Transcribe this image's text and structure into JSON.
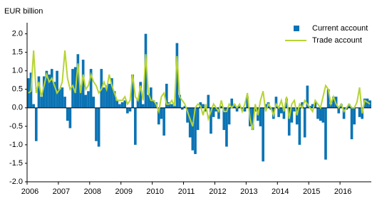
{
  "chart_data": {
    "type": "bar-line",
    "y_label": "EUR billion",
    "categories": [
      "2006",
      null,
      null,
      null,
      null,
      null,
      null,
      null,
      null,
      null,
      null,
      null,
      "2007",
      null,
      null,
      null,
      null,
      null,
      null,
      null,
      null,
      null,
      null,
      null,
      "2008",
      null,
      null,
      null,
      null,
      null,
      null,
      null,
      null,
      null,
      null,
      null,
      "2009",
      null,
      null,
      null,
      null,
      null,
      null,
      null,
      null,
      null,
      null,
      null,
      "2010",
      null,
      null,
      null,
      null,
      null,
      null,
      null,
      null,
      null,
      null,
      null,
      "2011",
      null,
      null,
      null,
      null,
      null,
      null,
      null,
      null,
      null,
      null,
      null,
      "2012",
      null,
      null,
      null,
      null,
      null,
      null,
      null,
      null,
      null,
      null,
      null,
      "2013",
      null,
      null,
      null,
      null,
      null,
      null,
      null,
      null,
      null,
      null,
      null,
      "2014",
      null,
      null,
      null,
      null,
      null,
      null,
      null,
      null,
      null,
      null,
      null,
      "2015",
      null,
      null,
      null,
      null,
      null,
      null,
      null,
      null,
      null,
      null,
      null,
      "2016",
      null,
      null,
      null,
      null,
      null,
      null,
      null,
      null,
      null,
      null,
      null
    ],
    "series": [
      {
        "name": "Current account",
        "type": "bar",
        "color": "#0b73b4",
        "values": [
          0.8,
          0.95,
          0.1,
          -0.9,
          0.85,
          0.3,
          0.85,
          1.0,
          0.9,
          1.05,
          0.7,
          1.0,
          0.5,
          0.55,
          0.3,
          -0.35,
          -0.55,
          1.05,
          1.1,
          1.45,
          0.6,
          1.3,
          0.35,
          0.45,
          1.05,
          0.3,
          -0.9,
          -1.05,
          1.05,
          0.55,
          0.6,
          0.65,
          0.8,
          0.45,
          0.2,
          0.1,
          0.15,
          0.2,
          -0.15,
          -0.1,
          0.9,
          -1.0,
          0.25,
          0.7,
          0.1,
          2.0,
          0.35,
          0.55,
          0.2,
          0.15,
          -0.45,
          -0.3,
          -0.75,
          0.65,
          0.15,
          0.1,
          0.05,
          1.75,
          0.35,
          -0.05,
          0.05,
          -0.4,
          -0.8,
          -1.15,
          -1.25,
          -0.6,
          0.15,
          0.1,
          -0.1,
          0.35,
          -0.7,
          -0.25,
          -0.1,
          -0.3,
          0.05,
          -0.6,
          -1.05,
          -0.45,
          0.25,
          0.1,
          -0.1,
          0.05,
          -0.05,
          -0.1,
          0.3,
          -0.5,
          -0.6,
          -0.1,
          -0.35,
          -0.5,
          -1.45,
          0.1,
          0.15,
          -0.05,
          -0.3,
          0.3,
          -0.25,
          -0.15,
          -0.3,
          0.25,
          -0.75,
          -0.4,
          -0.1,
          -0.45,
          -1.0,
          0.15,
          -0.8,
          0.6,
          0.05,
          0.1,
          0.15,
          -0.3,
          -0.35,
          -0.4,
          -1.4,
          0.5,
          0.1,
          0.3,
          0.3,
          -0.15,
          0.1,
          -0.3,
          -0.05,
          0.1,
          -0.85,
          -0.45,
          0.0,
          -0.25,
          -0.3,
          0.25,
          0.25,
          0.2
        ]
      },
      {
        "name": "Trade account",
        "type": "line",
        "color": "#b6d433",
        "values": [
          0.4,
          0.45,
          1.55,
          0.4,
          0.7,
          0.3,
          0.6,
          0.9,
          0.7,
          0.8,
          0.6,
          0.4,
          0.5,
          0.7,
          1.55,
          0.8,
          0.5,
          0.6,
          0.4,
          1.2,
          0.4,
          0.9,
          0.5,
          0.6,
          0.9,
          0.7,
          0.6,
          0.4,
          0.5,
          0.7,
          0.5,
          0.9,
          0.6,
          0.4,
          0.2,
          0.2,
          0.2,
          0.3,
          0.1,
          0.2,
          0.9,
          0.3,
          0.2,
          0.6,
          0.2,
          1.45,
          0.4,
          0.2,
          0.2,
          0.1,
          -0.1,
          0.3,
          0.4,
          0.1,
          0.1,
          0.2,
          0.05,
          1.4,
          0.3,
          0.2,
          0.1,
          -0.1,
          -0.3,
          -0.5,
          0.0,
          0.1,
          0.05,
          -0.2,
          0.1,
          -0.3,
          -0.1,
          0.1,
          0.0,
          -0.1,
          0.2,
          -0.1,
          -0.1,
          0.1,
          0.0,
          0.1,
          0.0,
          0.1,
          -0.1,
          0.1,
          0.4,
          -0.3,
          -0.6,
          0.1,
          -0.2,
          0.2,
          0.45,
          -0.1,
          0.1,
          0.0,
          -0.2,
          0.1,
          0.0,
          0.2,
          -0.1,
          0.3,
          -0.3,
          0.1,
          0.2,
          -0.2,
          0.1,
          0.0,
          0.2,
          0.1,
          0.0,
          -0.1,
          0.2,
          0.1,
          0.0,
          0.3,
          0.6,
          0.5,
          0.1,
          0.3,
          0.1,
          0.0,
          0.1,
          -0.1,
          0.0,
          0.1,
          0.0,
          0.0,
          0.15,
          0.55,
          -0.15,
          0.2,
          0.15,
          0.1
        ]
      }
    ],
    "ylim": [
      -2.0,
      2.3
    ],
    "yticks": [
      {
        "value": 2.0,
        "label": "2.0"
      },
      1.5,
      {
        "value": 1.0,
        "label": "1.0"
      },
      0.5,
      {
        "value": 0.0,
        "label": "0.0"
      },
      -0.5,
      {
        "value": -1.0,
        "label": "-1.0"
      },
      -1.5,
      {
        "value": -2.0,
        "label": "-2.0"
      }
    ],
    "legend": "upper right",
    "grid": false
  }
}
